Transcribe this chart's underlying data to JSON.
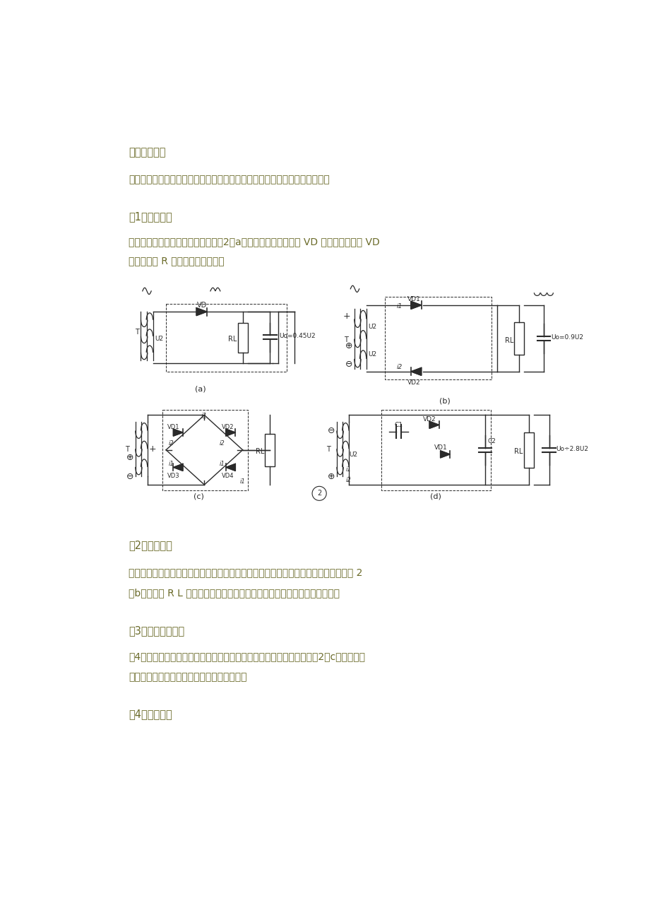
{
  "bg_color": "#ffffff",
  "text_color": "#6b6b2a",
  "lc": "#2a2a2a",
  "fs_body": 10.0,
  "fs_small": 7.5,
  "page_width": 9.2,
  "page_height": 13.02,
  "heading1": "二、整流电路",
  "para1": "整流电路是运用半导体二极管单向导电性能把交流电变成单向脉动直流电路。",
  "heading2": "（1）半波整流",
  "para2a": "半波整流电路只需一种二极管，见图2（a）。在交流电正半周时 VD 导通，负半周时 VD",
  "para2b": "截止，负载 R 上得到是脉动直流电",
  "heading3": "（2）全波整流",
  "para3a": "全波整流要用两个二极管，并且规定变压器有带中心抓头两个圈数相似次级线圈，见图 2",
  "para3b": "（b）。负载 R L 上得到是脉动全波整流电流，输出电压比半波整流电路高。",
  "heading4": "（3）全波桥式整流",
  "para4a": "用4个二极管构成桥式整流电路可以使用只有单个次级线圈变压器，见图2（c）。负载上",
  "para4b": "电流波形和输出电压值与全波整流电路相似。",
  "heading5": "（4）倍压整流"
}
